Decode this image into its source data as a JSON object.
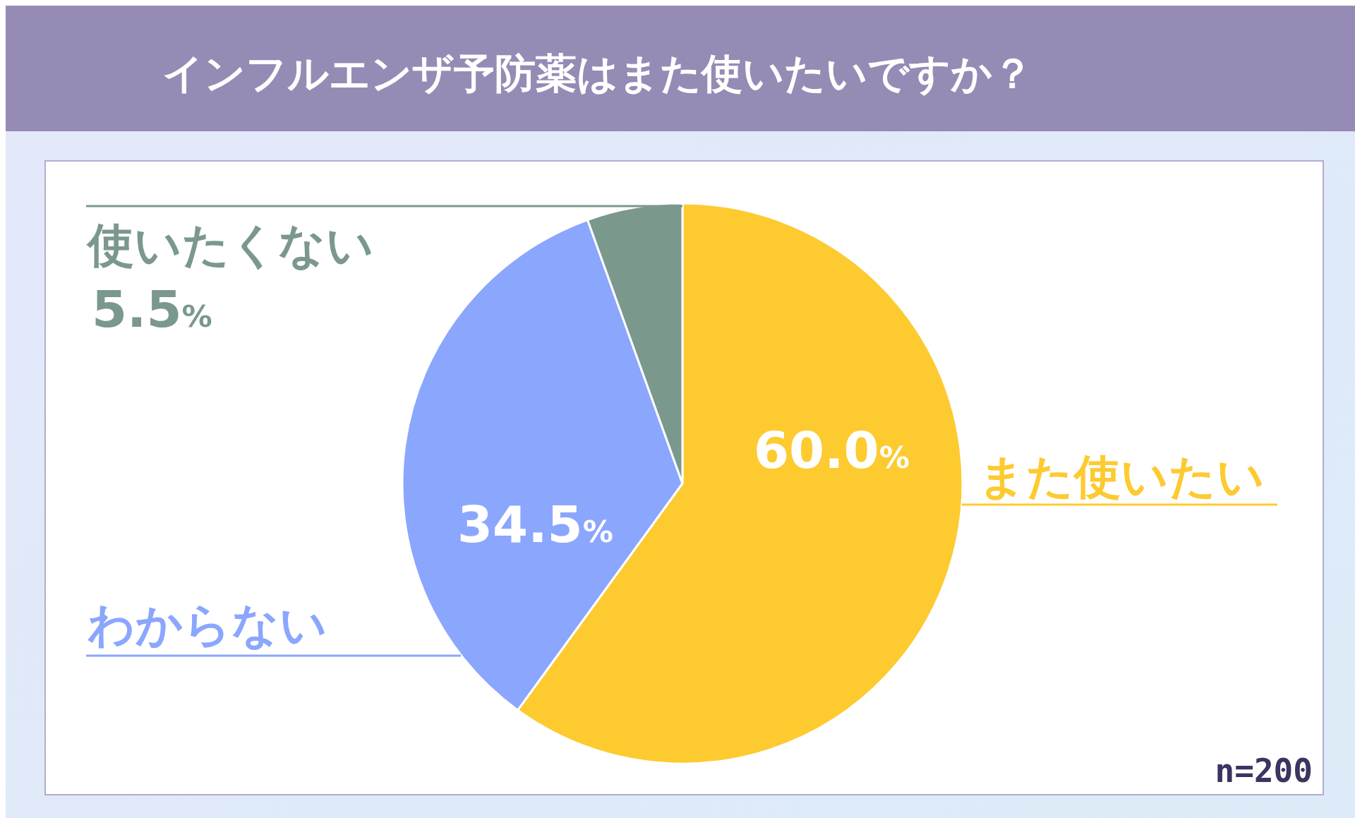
{
  "chart_data": {
    "type": "pie",
    "title": "インフルエンザ予防薬はまた使いたいですか？",
    "categories": [
      "また使いたい",
      "わからない",
      "使いたくない"
    ],
    "values": [
      60.0,
      34.5,
      5.5
    ],
    "colors": [
      "#fdca30",
      "#8ba6fd",
      "#7b988d"
    ],
    "value_labels": [
      "60.0%",
      "34.5%",
      "5.5%"
    ],
    "annotations": [
      "n=200"
    ],
    "legend": false
  }
}
